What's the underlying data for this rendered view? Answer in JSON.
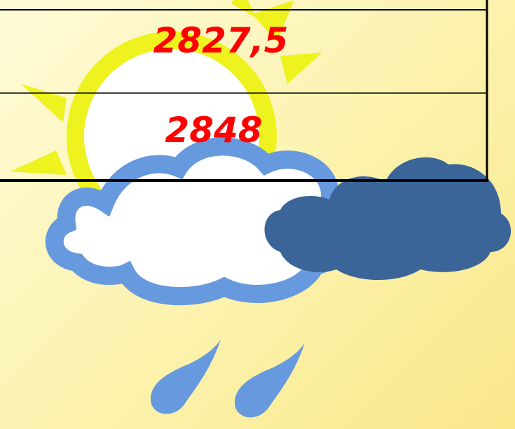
{
  "table": {
    "rows": [
      [
        "2827,5"
      ],
      [
        "2848"
      ]
    ]
  }
}
